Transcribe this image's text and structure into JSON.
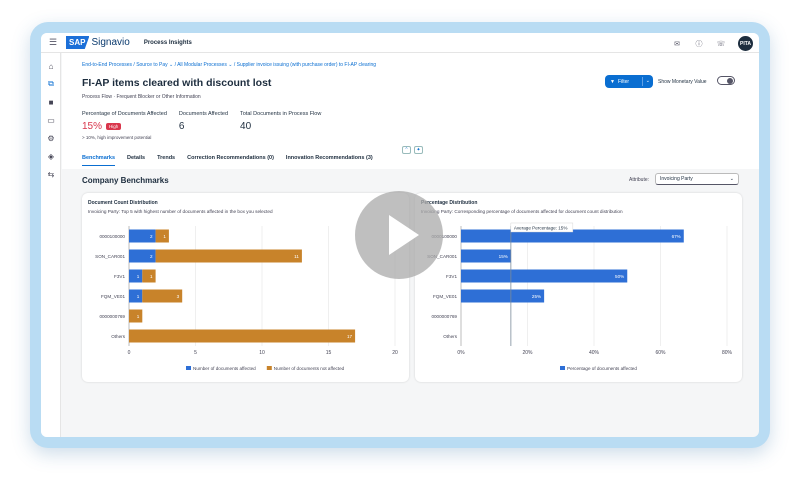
{
  "shell": {
    "brand_sap": "SAP",
    "brand_name": "Signavio",
    "app_title": "Process Insights",
    "avatar_initials": "PITA"
  },
  "breadcrumbs": [
    "End-to-End Processes / Source to Pay",
    "/ All Modular Processes",
    "/ Supplier invoice issuing (with purchase order) to FI-AP clearing"
  ],
  "header": {
    "title": "FI-AP items cleared with discount lost",
    "subtitle": "Process Flow · Frequent Blocker or Other Information",
    "filter_label": "Filter",
    "monetary_label": "Show Monetary Value"
  },
  "kpis": [
    {
      "label": "Percentage of Documents Affected",
      "value": "15%",
      "badge": "High",
      "note": "> 10%, high improvement potential"
    },
    {
      "label": "Documents Affected",
      "value": "6"
    },
    {
      "label": "Total Documents in Process Flow",
      "value": "40"
    }
  ],
  "tabs": [
    {
      "label": "Benchmarks",
      "active": true
    },
    {
      "label": "Details"
    },
    {
      "label": "Trends"
    },
    {
      "label": "Correction Recommendations (0)"
    },
    {
      "label": "Innovation Recommendations (3)"
    }
  ],
  "section": {
    "title": "Company Benchmarks",
    "attribute_label": "Attribute:",
    "attribute_value": "Invoicing Party"
  },
  "colors": {
    "affected": "#2e6fd6",
    "not_affected": "#c8832a",
    "accent": "#0a6ed1",
    "high": "#d9364c"
  },
  "chart_data": [
    {
      "type": "bar",
      "orientation": "horizontal",
      "stacked": true,
      "title": "Document Count Distribution",
      "subtitle": "Invoicing Party: Top 5 with highest number of documents affected in the box you selected",
      "categories": [
        "0000100000",
        "SON_CAR001",
        "F3V1",
        "FQM_VE01",
        "0000000769",
        "Others"
      ],
      "series": [
        {
          "name": "Number of documents affected",
          "values": [
            2,
            2,
            1,
            1,
            0,
            0
          ],
          "labels": [
            "2",
            "2",
            "1",
            "1",
            "",
            ""
          ]
        },
        {
          "name": "Number of documents not affected",
          "values": [
            1,
            11,
            1,
            3,
            1,
            17
          ],
          "labels": [
            "1",
            "11",
            "1",
            "3",
            "1",
            "17"
          ]
        }
      ],
      "xlim": [
        0,
        20
      ],
      "xticks": [
        "0",
        "5",
        "10",
        "15",
        "20"
      ],
      "grid": true,
      "legend": "bottom"
    },
    {
      "type": "bar",
      "orientation": "horizontal",
      "title": "Percentage Distribution",
      "subtitle": "Invoicing Party: Corresponding percentage of documents affected for document count distribution",
      "categories": [
        "0000100000",
        "SON_CAR001",
        "F3V1",
        "FQM_VE01",
        "0000000769",
        "Others"
      ],
      "series": [
        {
          "name": "Percentage of documents affected",
          "values": [
            67,
            15,
            50,
            25,
            0,
            0
          ],
          "labels": [
            "67%",
            "15%",
            "50%",
            "25%",
            "",
            ""
          ]
        }
      ],
      "reference_line": {
        "value": 15,
        "label": "Average Percentage: 15%"
      },
      "xlim": [
        0,
        80
      ],
      "xticks": [
        "0%",
        "20%",
        "40%",
        "60%",
        "80%"
      ],
      "grid": true,
      "legend": "bottom"
    }
  ]
}
